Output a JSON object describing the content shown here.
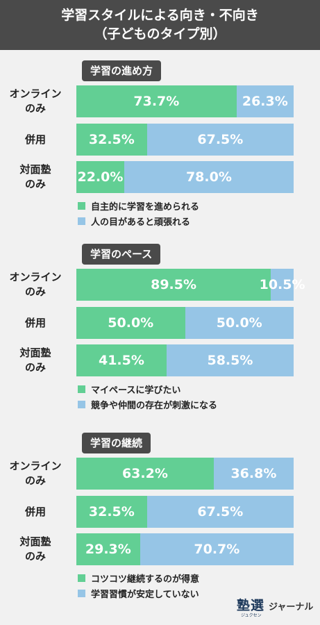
{
  "header": {
    "title_line1": "学習スタイルによる向き・不向き",
    "title_line2": "（子どものタイプ別）"
  },
  "colors": {
    "green": "#62cf94",
    "blue": "#96c5e6",
    "header_bg": "#4a4a4a"
  },
  "chart_data": [
    {
      "type": "bar",
      "orientation": "horizontal-stacked-100",
      "title": "学習の進め方",
      "categories": [
        "オンライン\nのみ",
        "併用",
        "対面塾\nのみ"
      ],
      "series": [
        {
          "name": "自主的に学習を進められる",
          "values": [
            73.7,
            32.5,
            22.0
          ],
          "labels": [
            "73.7%",
            "32.5%",
            "22.0%"
          ]
        },
        {
          "name": "人の目があると頑張れる",
          "values": [
            26.3,
            67.5,
            78.0
          ],
          "labels": [
            "26.3%",
            "67.5%",
            "78.0%"
          ]
        }
      ],
      "xlim": [
        0,
        100
      ],
      "legend": "bottom"
    },
    {
      "type": "bar",
      "orientation": "horizontal-stacked-100",
      "title": "学習のペース",
      "categories": [
        "オンライン\nのみ",
        "併用",
        "対面塾\nのみ"
      ],
      "series": [
        {
          "name": "マイペースに学びたい",
          "values": [
            89.5,
            50.0,
            41.5
          ],
          "labels": [
            "89.5%",
            "50.0%",
            "41.5%"
          ]
        },
        {
          "name": "競争や仲間の存在が刺激になる",
          "values": [
            10.5,
            50.0,
            58.5
          ],
          "labels": [
            "10.5%",
            "50.0%",
            "58.5%"
          ]
        }
      ],
      "xlim": [
        0,
        100
      ],
      "legend": "bottom"
    },
    {
      "type": "bar",
      "orientation": "horizontal-stacked-100",
      "title": "学習の継続",
      "categories": [
        "オンライン\nのみ",
        "併用",
        "対面塾\nのみ"
      ],
      "series": [
        {
          "name": "コツコツ継続するのが得意",
          "values": [
            63.2,
            32.5,
            29.3
          ],
          "labels": [
            "63.2%",
            "32.5%",
            "29.3%"
          ]
        },
        {
          "name": "学習習慣が安定していない",
          "values": [
            36.8,
            67.5,
            70.7
          ],
          "labels": [
            "36.8%",
            "67.5%",
            "70.7%"
          ]
        }
      ],
      "xlim": [
        0,
        100
      ],
      "legend": "bottom"
    }
  ],
  "logo": {
    "kanji": "塾選",
    "kana": "ジュクセン",
    "name": "ジャーナル"
  }
}
